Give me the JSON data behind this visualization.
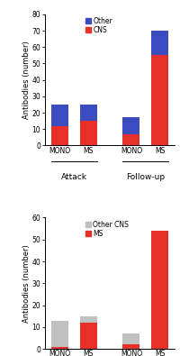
{
  "chart1": {
    "ylabel": "Antibodies (number)",
    "ylim": [
      0,
      80
    ],
    "yticks": [
      0,
      10,
      20,
      30,
      40,
      50,
      60,
      70,
      80
    ],
    "groups": [
      "Attack",
      "Follow-up"
    ],
    "categories": [
      "MONO",
      "MS",
      "MONO",
      "MS"
    ],
    "cns_values": [
      12,
      15,
      7,
      55
    ],
    "other_values": [
      13,
      10,
      10,
      15
    ],
    "cns_color": "#e8302a",
    "other_color": "#3b4cc0",
    "legend_labels": [
      "Other",
      "CNS"
    ],
    "legend_colors": [
      "#3b4cc0",
      "#e8302a"
    ]
  },
  "chart2": {
    "ylabel": "Antibodies (number)",
    "ylim": [
      0,
      60
    ],
    "yticks": [
      0,
      10,
      20,
      30,
      40,
      50,
      60
    ],
    "groups": [
      "Attack",
      "Follow-up"
    ],
    "categories": [
      "MONO",
      "MS",
      "MONO",
      "MS"
    ],
    "ms_values": [
      1,
      12,
      2,
      54
    ],
    "othercns_values": [
      12,
      3,
      5,
      0
    ],
    "ms_color": "#e8302a",
    "othercns_color": "#c0c0c0",
    "legend_labels": [
      "Other CNS",
      "MS"
    ],
    "legend_colors": [
      "#c0c0c0",
      "#e8302a"
    ]
  },
  "background_color": "#ffffff",
  "bar_width": 0.6,
  "fontsize_tick": 5.5,
  "fontsize_ylabel": 6.0,
  "fontsize_legend": 5.5,
  "fontsize_group_label": 6.5,
  "fontsize_cat_label": 5.5
}
